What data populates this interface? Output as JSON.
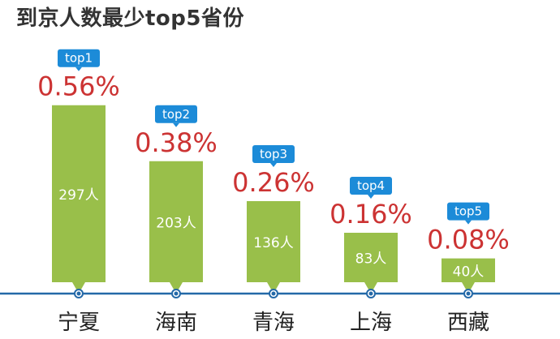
{
  "title": "到京人数最少top5省份",
  "colors": {
    "bar": "#99bf4a",
    "percent_text": "#cc3333",
    "badge": "#1c8bd8",
    "axis": "#2469a8",
    "count_text": "#ffffff",
    "category_text": "#222222",
    "title_text": "#333333"
  },
  "chart_data": {
    "type": "bar",
    "title": "到京人数最少top5省份",
    "categories": [
      "宁夏",
      "海南",
      "青海",
      "上海",
      "西藏"
    ],
    "ranks": [
      "top1",
      "top2",
      "top3",
      "top4",
      "top5"
    ],
    "values": [
      297,
      203,
      136,
      83,
      40
    ],
    "value_labels": [
      "297人",
      "203人",
      "136人",
      "83人",
      "40人"
    ],
    "percent_labels": [
      "0.56%",
      "0.38%",
      "0.26%",
      "0.16%",
      "0.08%"
    ],
    "xlabel": "",
    "ylabel": "",
    "grid": false,
    "legend": "none"
  }
}
